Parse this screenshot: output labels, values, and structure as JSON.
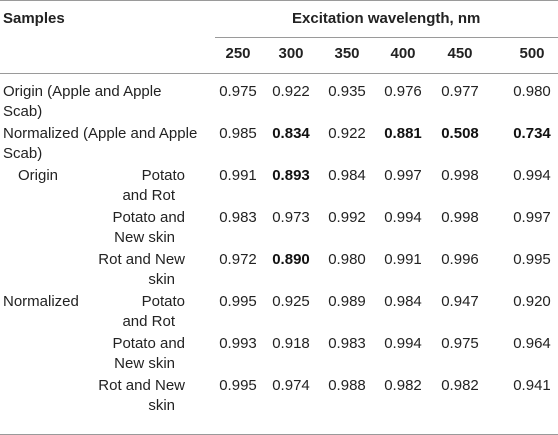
{
  "header": {
    "samples_label": "Samples",
    "excitation_label": "Excitation wavelength, nm",
    "wavelengths": [
      "250",
      "300",
      "350",
      "400",
      "450",
      "500"
    ]
  },
  "rows": [
    {
      "group": "Origin (Apple and Apple",
      "group2": "Scab)",
      "sub": "",
      "sub2": "",
      "values": [
        "0.975",
        "0.922",
        "0.935",
        "0.976",
        "0.977",
        "0.980"
      ],
      "bold": [
        false,
        false,
        false,
        false,
        false,
        false
      ]
    },
    {
      "group": "Normalized (Apple and Apple",
      "group2": "Scab)",
      "sub": "",
      "sub2": "",
      "values": [
        "0.985",
        "0.834",
        "0.922",
        "0.881",
        "0.508",
        "0.734"
      ],
      "bold": [
        false,
        true,
        false,
        true,
        true,
        true
      ]
    },
    {
      "group": "Origin",
      "group2": "",
      "sub": "Potato",
      "sub2": "and Rot",
      "values": [
        "0.991",
        "0.893",
        "0.984",
        "0.997",
        "0.998",
        "0.994"
      ],
      "bold": [
        false,
        true,
        false,
        false,
        false,
        false
      ]
    },
    {
      "group": "",
      "group2": "",
      "sub": "Potato and",
      "sub2": "New skin",
      "values": [
        "0.983",
        "0.973",
        "0.992",
        "0.994",
        "0.998",
        "0.997"
      ],
      "bold": [
        false,
        false,
        false,
        false,
        false,
        false
      ]
    },
    {
      "group": "",
      "group2": "",
      "sub": "Rot and New",
      "sub2": "skin",
      "values": [
        "0.972",
        "0.890",
        "0.980",
        "0.991",
        "0.996",
        "0.995"
      ],
      "bold": [
        false,
        true,
        false,
        false,
        false,
        false
      ]
    },
    {
      "group": "Normalized",
      "group2": "",
      "sub": "Potato",
      "sub2": "and Rot",
      "values": [
        "0.995",
        "0.925",
        "0.989",
        "0.984",
        "0.947",
        "0.920"
      ],
      "bold": [
        false,
        false,
        false,
        false,
        false,
        false
      ]
    },
    {
      "group": "",
      "group2": "",
      "sub": "Potato and",
      "sub2": "New skin",
      "values": [
        "0.993",
        "0.918",
        "0.983",
        "0.994",
        "0.975",
        "0.964"
      ],
      "bold": [
        false,
        false,
        false,
        false,
        false,
        false
      ]
    },
    {
      "group": "",
      "group2": "",
      "sub": "Rot and New",
      "sub2": "skin",
      "values": [
        "0.995",
        "0.974",
        "0.988",
        "0.982",
        "0.982",
        "0.941"
      ],
      "bold": [
        false,
        false,
        false,
        false,
        false,
        false
      ]
    }
  ]
}
